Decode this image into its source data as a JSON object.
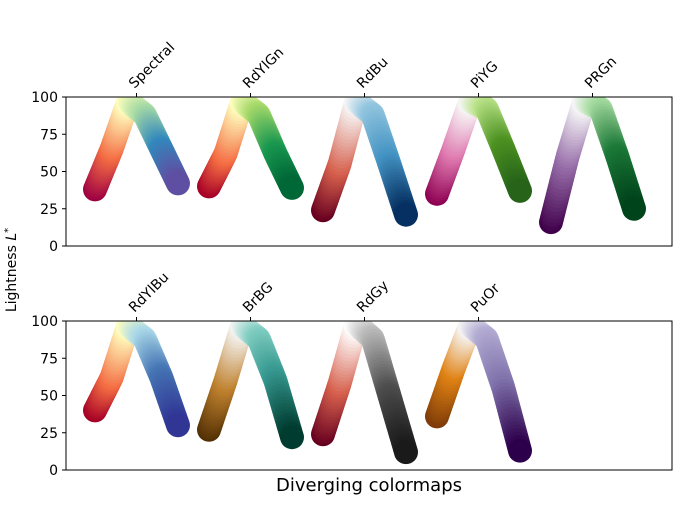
{
  "chart_data": {
    "type": "scatter",
    "xlabel": "Diverging colormaps",
    "ylabel": "Lightness L*",
    "ylim": [
      0,
      100
    ],
    "yticks": [
      0,
      25,
      50,
      75,
      100
    ],
    "grid": false,
    "panels": [
      {
        "colormaps": [
          {
            "name": "Spectral",
            "lightness": [
              38,
              65,
              97,
              88,
              65,
              42
            ],
            "colors": [
              "#9e0142",
              "#f46d43",
              "#ffffbf",
              "#abdda4",
              "#3288bd",
              "#5e4fa2"
            ]
          },
          {
            "name": "RdYlGn",
            "lightness": [
              40,
              62,
              97,
              88,
              62,
              39
            ],
            "colors": [
              "#a50026",
              "#f46d43",
              "#ffffbf",
              "#a6d96a",
              "#1a9850",
              "#006837"
            ]
          },
          {
            "name": "RdBu",
            "lightness": [
              24,
              55,
              97,
              88,
              55,
              21
            ],
            "colors": [
              "#67001f",
              "#d6604d",
              "#f7f7f7",
              "#92c5de",
              "#4393c3",
              "#053061"
            ]
          },
          {
            "name": "PiYG",
            "lightness": [
              35,
              65,
              97,
              92,
              65,
              37
            ],
            "colors": [
              "#8e0152",
              "#de77ae",
              "#f7f7f7",
              "#b8e186",
              "#4d9221",
              "#276419"
            ]
          },
          {
            "name": "PRGn",
            "lightness": [
              16,
              60,
              97,
              92,
              60,
              25
            ],
            "colors": [
              "#40004b",
              "#9970ab",
              "#f7f7f7",
              "#a6dba0",
              "#1b7837",
              "#00441b"
            ]
          }
        ]
      },
      {
        "colormaps": [
          {
            "name": "RdYlBu",
            "lightness": [
              40,
              62,
              97,
              88,
              62,
              30
            ],
            "colors": [
              "#a50026",
              "#f46d43",
              "#ffffbf",
              "#abd9e9",
              "#4575b4",
              "#313695"
            ]
          },
          {
            "name": "BrBG",
            "lightness": [
              27,
              60,
              97,
              88,
              60,
              22
            ],
            "colors": [
              "#543005",
              "#bf812d",
              "#f5f5f5",
              "#80cdc1",
              "#35978f",
              "#003c30"
            ]
          },
          {
            "name": "RdGy",
            "lightness": [
              24,
              58,
              98,
              88,
              50,
              12
            ],
            "colors": [
              "#67001f",
              "#d6604d",
              "#ffffff",
              "#bababa",
              "#4d4d4d",
              "#1a1a1a"
            ]
          },
          {
            "name": "PuOr",
            "lightness": [
              36,
              68,
              97,
              88,
              55,
              13
            ],
            "colors": [
              "#7f3b08",
              "#e08214",
              "#f7f7f7",
              "#b2abd2",
              "#8073ac",
              "#2d004b"
            ]
          }
        ]
      }
    ]
  }
}
